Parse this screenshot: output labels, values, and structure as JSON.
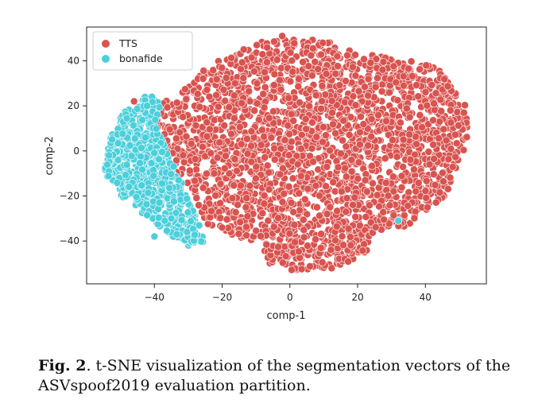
{
  "chart_data": {
    "type": "scatter",
    "title": "",
    "xlabel": "comp-1",
    "ylabel": "comp-2",
    "xlim": [
      -60,
      58
    ],
    "ylim": [
      -59,
      55
    ],
    "xticks": [
      -40,
      -20,
      0,
      20,
      40
    ],
    "yticks": [
      -40,
      -20,
      0,
      20,
      40
    ],
    "xtick_labels": [
      "−40",
      "−20",
      "0",
      "20",
      "40"
    ],
    "ytick_labels": [
      "−40",
      "−20",
      "0",
      "20",
      "40"
    ],
    "grid": false,
    "legend_position": "top-left",
    "series": [
      {
        "name": "TTS",
        "color": "#d9534f",
        "region": {
          "outline": [
            [
              -38,
              22
            ],
            [
              -32,
              26
            ],
            [
              -24,
              38
            ],
            [
              -10,
              48
            ],
            [
              0,
              52
            ],
            [
              10,
              49
            ],
            [
              20,
              44
            ],
            [
              30,
              41
            ],
            [
              40,
              39
            ],
            [
              46,
              35
            ],
            [
              48,
              27
            ],
            [
              52,
              20
            ],
            [
              53,
              6
            ],
            [
              49,
              -8
            ],
            [
              46,
              -20
            ],
            [
              40,
              -27
            ],
            [
              34,
              -34
            ],
            [
              26,
              -36
            ],
            [
              22,
              -46
            ],
            [
              12,
              -53
            ],
            [
              0,
              -53
            ],
            [
              -6,
              -50
            ],
            [
              -10,
              -40
            ],
            [
              -16,
              -38
            ],
            [
              -20,
              -35
            ],
            [
              -24,
              -33
            ],
            [
              -28,
              -22
            ],
            [
              -33,
              -12
            ],
            [
              -38,
              -6
            ],
            [
              -40,
              4
            ],
            [
              -40,
              14
            ]
          ],
          "approx_points": 2600
        },
        "outliers": [
          [
            -46,
            22
          ],
          [
            -44,
            18
          ],
          [
            -42,
            15
          ],
          [
            -20,
            -34
          ],
          [
            14,
            42
          ],
          [
            32,
            -31
          ]
        ]
      },
      {
        "name": "bonafide",
        "color": "#4ccfdb",
        "region": {
          "outline": [
            [
              -45,
              22
            ],
            [
              -41,
              26
            ],
            [
              -38,
              20
            ],
            [
              -40,
              12
            ],
            [
              -37,
              2
            ],
            [
              -33,
              -10
            ],
            [
              -30,
              -22
            ],
            [
              -27,
              -32
            ],
            [
              -24,
              -42
            ],
            [
              -30,
              -42
            ],
            [
              -36,
              -37
            ],
            [
              -44,
              -27
            ],
            [
              -50,
              -20
            ],
            [
              -55,
              -10
            ],
            [
              -54,
              0
            ],
            [
              -52,
              10
            ],
            [
              -49,
              17
            ]
          ],
          "approx_points": 700
        },
        "outliers": [
          [
            32,
            -31
          ],
          [
            -35,
            -30
          ],
          [
            -40,
            -38
          ]
        ]
      }
    ]
  },
  "caption": {
    "label": "Fig. 2",
    "text": ". t-SNE visualization of the segmentation vectors of the ASVspoof2019 evaluation partition."
  }
}
